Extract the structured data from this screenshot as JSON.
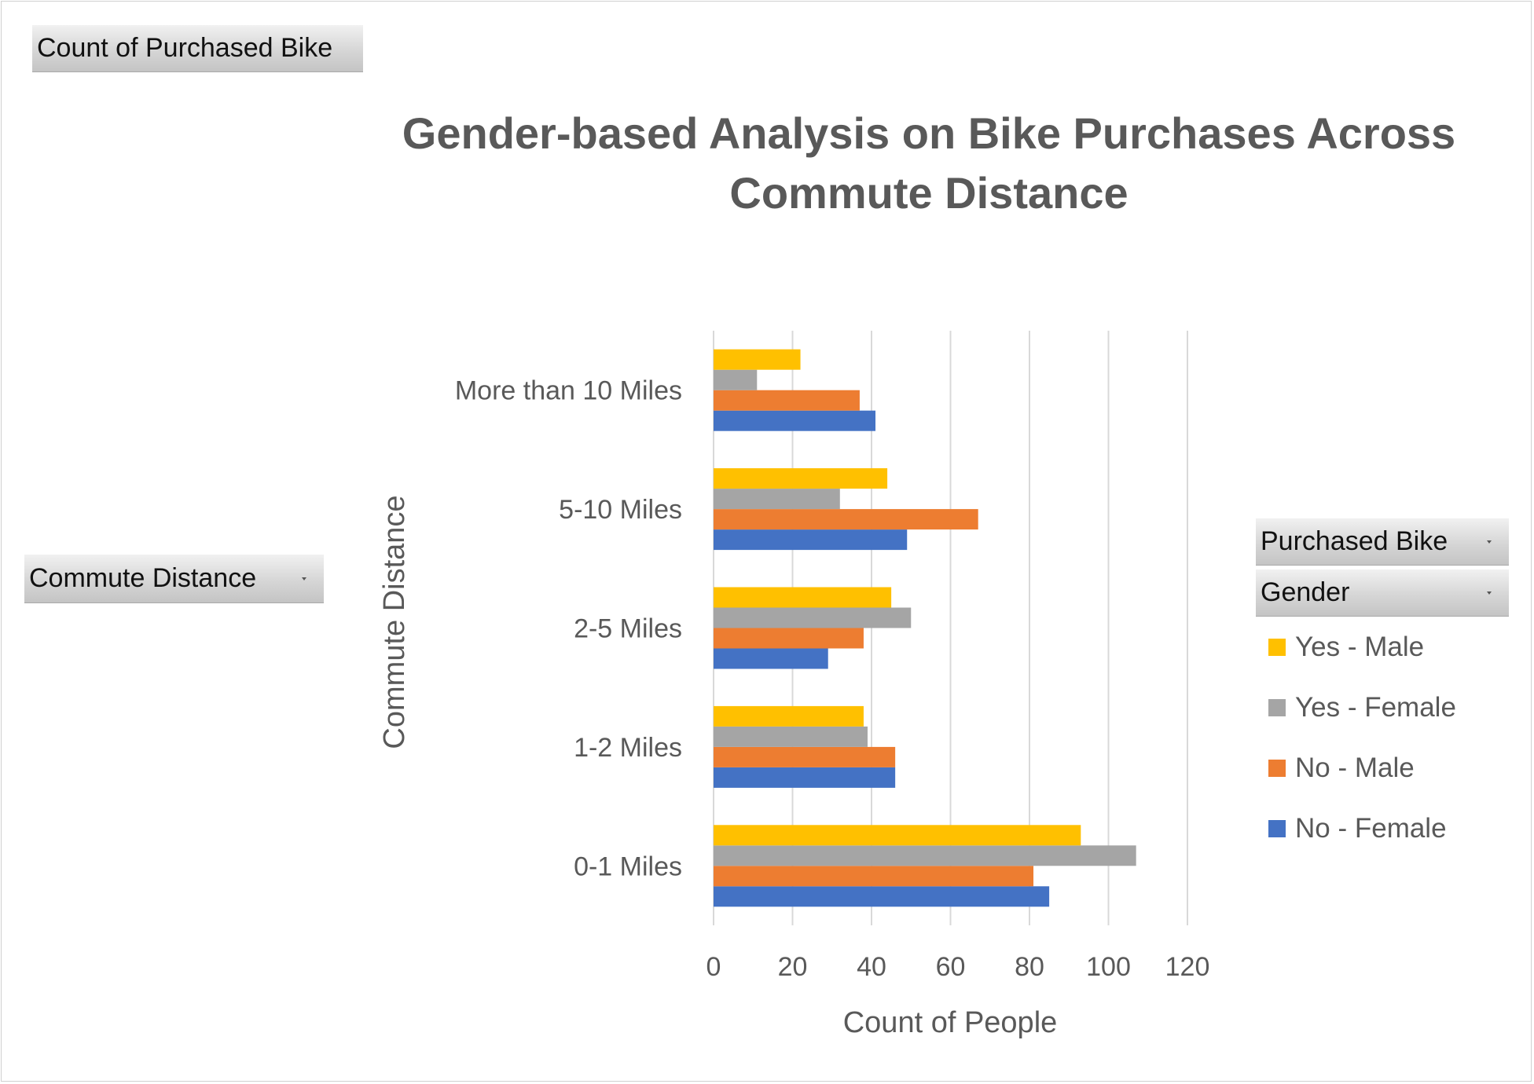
{
  "pivot_fields": {
    "value_field": "Count of Purchased Bike",
    "axis_field": "Commute Distance",
    "legend_fields": [
      "Purchased Bike",
      "Gender"
    ]
  },
  "chart_data": {
    "type": "bar",
    "orientation": "horizontal",
    "title_lines": [
      "Gender-based Analysis on Bike Purchases Across",
      "Commute Distance"
    ],
    "xlabel": "Count of People",
    "ylabel": "Commute Distance",
    "xlim": [
      0,
      120
    ],
    "x_ticks": [
      0,
      20,
      40,
      60,
      80,
      100,
      120
    ],
    "grid": "vertical",
    "legend_position": "right",
    "categories": [
      "0-1 Miles",
      "1-2 Miles",
      "2-5 Miles",
      "5-10 Miles",
      "More than 10 Miles"
    ],
    "series": [
      {
        "name": "No - Female",
        "color": "#4472C4",
        "values": [
          85,
          46,
          29,
          49,
          41
        ]
      },
      {
        "name": "No - Male",
        "color": "#ED7D31",
        "values": [
          81,
          46,
          38,
          67,
          37
        ]
      },
      {
        "name": "Yes - Female",
        "color": "#A5A5A5",
        "values": [
          107,
          39,
          50,
          32,
          11
        ]
      },
      {
        "name": "Yes - Male",
        "color": "#FFC000",
        "values": [
          93,
          38,
          45,
          44,
          22
        ]
      }
    ]
  }
}
